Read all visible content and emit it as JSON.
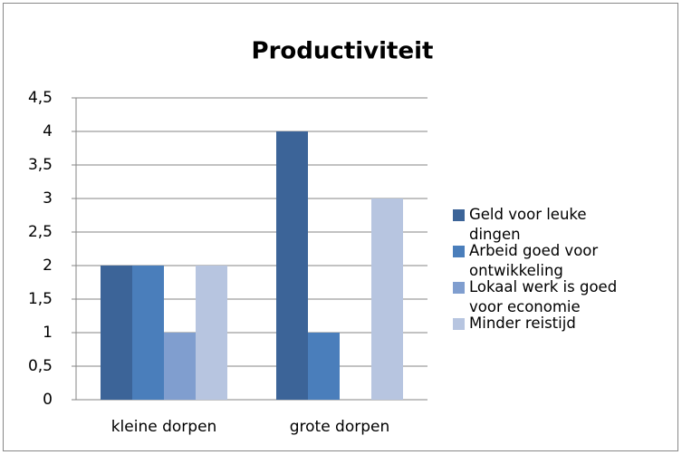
{
  "chart_data": {
    "type": "bar",
    "title": "Productiviteit",
    "categories": [
      "kleine dorpen",
      "grote dorpen"
    ],
    "series": [
      {
        "name": "Geld voor leuke dingen",
        "color": "#3c6498",
        "values": [
          2,
          4
        ]
      },
      {
        "name": "Arbeid goed voor ontwikkeling",
        "color": "#4a7ebb",
        "values": [
          2,
          1
        ]
      },
      {
        "name": "Lokaal werk is goed voor economie",
        "color": "#809ecf",
        "values": [
          1,
          0
        ]
      },
      {
        "name": "Minder reistijd",
        "color": "#b7c5e0",
        "values": [
          2,
          3
        ]
      }
    ],
    "ylim": [
      0,
      4.5
    ],
    "yticks": [
      0,
      {
        "value": 0.5,
        "label": "0,5"
      },
      1,
      {
        "value": 1.5,
        "label": "1,5"
      },
      2,
      {
        "value": 2.5,
        "label": "2,5"
      },
      3,
      {
        "value": 3.5,
        "label": "3,5"
      },
      4,
      {
        "value": 4.5,
        "label": "4,5"
      }
    ],
    "grid": true,
    "legend": "right"
  }
}
